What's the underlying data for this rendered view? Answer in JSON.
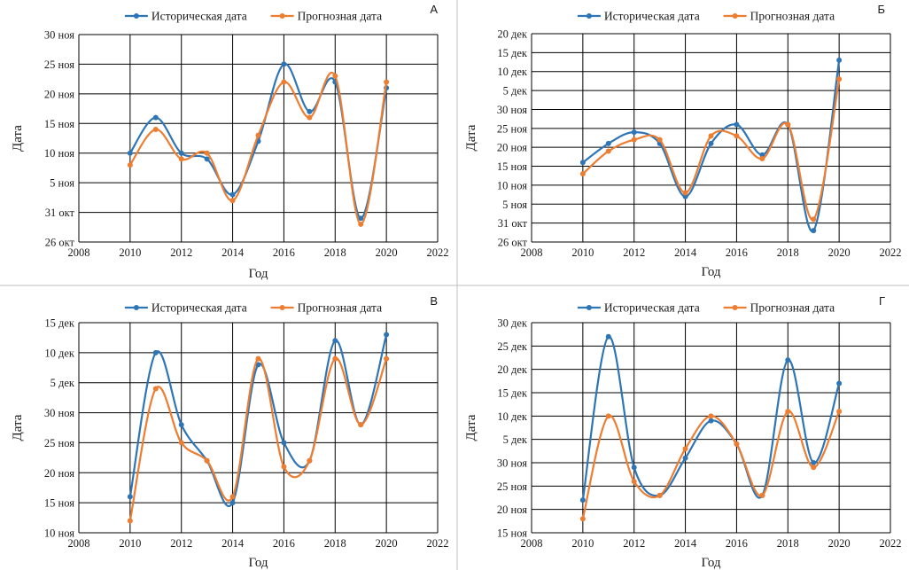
{
  "chart_data": [
    {
      "type": "line",
      "panel_label": "А",
      "categories": [
        2010,
        2011,
        2012,
        2013,
        2014,
        2015,
        2016,
        2017,
        2018,
        2019,
        2020
      ],
      "series": [
        {
          "name": "Историческая дата",
          "color": "#2e75b6",
          "values": [
            "10 ноя",
            "16 ноя",
            "10 ноя",
            "9 ноя",
            "3 ноя",
            "12 ноя",
            "25 ноя",
            "17 ноя",
            "22 ноя",
            "30 окт",
            "21 ноя"
          ]
        },
        {
          "name": "Прогнозная дата",
          "color": "#ed7d31",
          "values": [
            "8 ноя",
            "14 ноя",
            "9 ноя",
            "10 ноя",
            "2 ноя",
            "13 ноя",
            "22 ноя",
            "16 ноя",
            "23 ноя",
            "29 окт",
            "22 ноя"
          ]
        }
      ],
      "xlabel": "Год",
      "ylabel": "Дата",
      "xlim": [
        2008,
        2022
      ],
      "xticks": [
        "2008",
        "2010",
        "2012",
        "2014",
        "2016",
        "2018",
        "2020",
        "2022"
      ],
      "yticks": [
        "26 окт",
        "31 окт",
        "5 ноя",
        "10 ноя",
        "15 ноя",
        "20 ноя",
        "25 ноя",
        "30 ноя"
      ],
      "grid": true,
      "legend": "top"
    },
    {
      "type": "line",
      "panel_label": "Б",
      "categories": [
        2010,
        2011,
        2012,
        2013,
        2014,
        2015,
        2016,
        2017,
        2018,
        2019,
        2020
      ],
      "series": [
        {
          "name": "Историческая дата",
          "color": "#2e75b6",
          "values": [
            "16 ноя",
            "21 ноя",
            "24 ноя",
            "21 ноя",
            "7 ноя",
            "21 ноя",
            "26 ноя",
            "18 ноя",
            "26 ноя",
            "29 окт",
            "13 дек"
          ]
        },
        {
          "name": "Прогнозная дата",
          "color": "#ed7d31",
          "values": [
            "13 ноя",
            "19 ноя",
            "22 ноя",
            "22 ноя",
            "8 ноя",
            "23 ноя",
            "23 ноя",
            "17 ноя",
            "26 ноя",
            "1 ноя",
            "8 дек"
          ]
        }
      ],
      "xlabel": "Год",
      "ylabel": "Дата",
      "xlim": [
        2008,
        2022
      ],
      "xticks": [
        "2008",
        "2010",
        "2012",
        "2014",
        "2016",
        "2018",
        "2020",
        "2022"
      ],
      "yticks": [
        "26 окт",
        "31 окт",
        "5 ноя",
        "10 ноя",
        "15 ноя",
        "20 ноя",
        "25 ноя",
        "30 ноя",
        "5 дек",
        "10 дек",
        "15 дек",
        "20 дек"
      ],
      "grid": true,
      "legend": "top"
    },
    {
      "type": "line",
      "panel_label": "В",
      "categories": [
        2010,
        2011,
        2012,
        2013,
        2014,
        2015,
        2016,
        2017,
        2018,
        2019,
        2020
      ],
      "series": [
        {
          "name": "Историческая дата",
          "color": "#2e75b6",
          "values": [
            "16 ноя",
            "10 дек",
            "28 ноя",
            "22 ноя",
            "15 ноя",
            "8 дек",
            "25 ноя",
            "22 ноя",
            "12 дек",
            "28 ноя",
            "13 дек"
          ]
        },
        {
          "name": "Прогнозная дата",
          "color": "#ed7d31",
          "values": [
            "12 ноя",
            "4 дек",
            "25 ноя",
            "22 ноя",
            "16 ноя",
            "9 дек",
            "21 ноя",
            "22 ноя",
            "9 дек",
            "28 ноя",
            "9 дек"
          ]
        }
      ],
      "xlabel": "Год",
      "ylabel": "Дата",
      "xlim": [
        2008,
        2022
      ],
      "xticks": [
        "2008",
        "2010",
        "2012",
        "2014",
        "2016",
        "2018",
        "2020",
        "2022"
      ],
      "yticks": [
        "10 ноя",
        "15 ноя",
        "20 ноя",
        "25 ноя",
        "30 ноя",
        "5 дек",
        "10 дек",
        "15 дек"
      ],
      "grid": true,
      "legend": "top"
    },
    {
      "type": "line",
      "panel_label": "Г",
      "categories": [
        2010,
        2011,
        2012,
        2013,
        2014,
        2015,
        2016,
        2017,
        2018,
        2019,
        2020
      ],
      "series": [
        {
          "name": "Историческая дата",
          "color": "#2e75b6",
          "values": [
            "22 ноя",
            "27 дек",
            "29 ноя",
            "23 ноя",
            "1 дек",
            "9 дек",
            "4 дек",
            "23 ноя",
            "22 дек",
            "30 ноя",
            "17 дек"
          ]
        },
        {
          "name": "Прогнозная дата",
          "color": "#ed7d31",
          "values": [
            "18 ноя",
            "10 дек",
            "26 ноя",
            "23 ноя",
            "3 дек",
            "10 дек",
            "4 дек",
            "23 ноя",
            "11 дек",
            "29 ноя",
            "11 дек"
          ]
        }
      ],
      "xlabel": "Год",
      "ylabel": "Дата",
      "xlim": [
        2008,
        2022
      ],
      "xticks": [
        "2008",
        "2010",
        "2012",
        "2014",
        "2016",
        "2018",
        "2020",
        "2022"
      ],
      "yticks": [
        "15 ноя",
        "20 ноя",
        "25 ноя",
        "30 ноя",
        "5 дек",
        "10 дек",
        "15 дек",
        "20 дек",
        "25 дек",
        "30 дек"
      ],
      "grid": true,
      "legend": "top"
    }
  ]
}
